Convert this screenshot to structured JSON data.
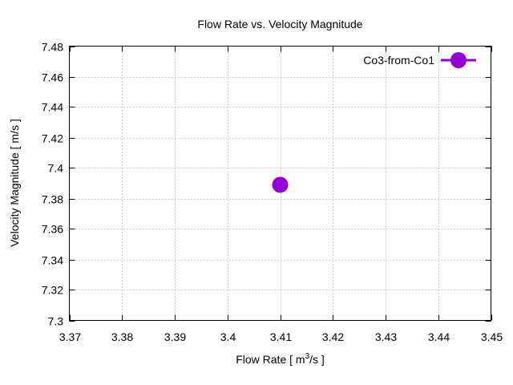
{
  "chart_data": {
    "type": "scatter",
    "title": "Flow Rate vs. Velocity Magnitude",
    "xlabel": "Flow Rate [ m³/s ]",
    "xlabel_parts": {
      "pre": "Flow Rate [ m",
      "sup": "3",
      "post": "/s ]"
    },
    "ylabel": "Velocity Magnitude [ m/s ]",
    "xlim": [
      3.37,
      3.45
    ],
    "ylim": [
      7.3,
      7.48
    ],
    "xticks": [
      3.37,
      3.38,
      3.39,
      3.4,
      3.41,
      3.42,
      3.43,
      3.44,
      3.45
    ],
    "xtick_labels": [
      "3.37",
      "3.38",
      "3.39",
      "3.4",
      "3.41",
      "3.42",
      "3.43",
      "3.44",
      "3.45"
    ],
    "yticks": [
      7.3,
      7.32,
      7.34,
      7.36,
      7.38,
      7.4,
      7.42,
      7.44,
      7.46,
      7.48
    ],
    "ytick_labels": [
      "7.3",
      "7.32",
      "7.34",
      "7.36",
      "7.38",
      "7.4",
      "7.42",
      "7.44",
      "7.46",
      "7.48"
    ],
    "grid": true,
    "legend_position": "top-right",
    "series": [
      {
        "name": "Co3-from-Co1",
        "color": "#9400d3",
        "x": [
          3.41
        ],
        "y": [
          7.389
        ]
      }
    ]
  }
}
